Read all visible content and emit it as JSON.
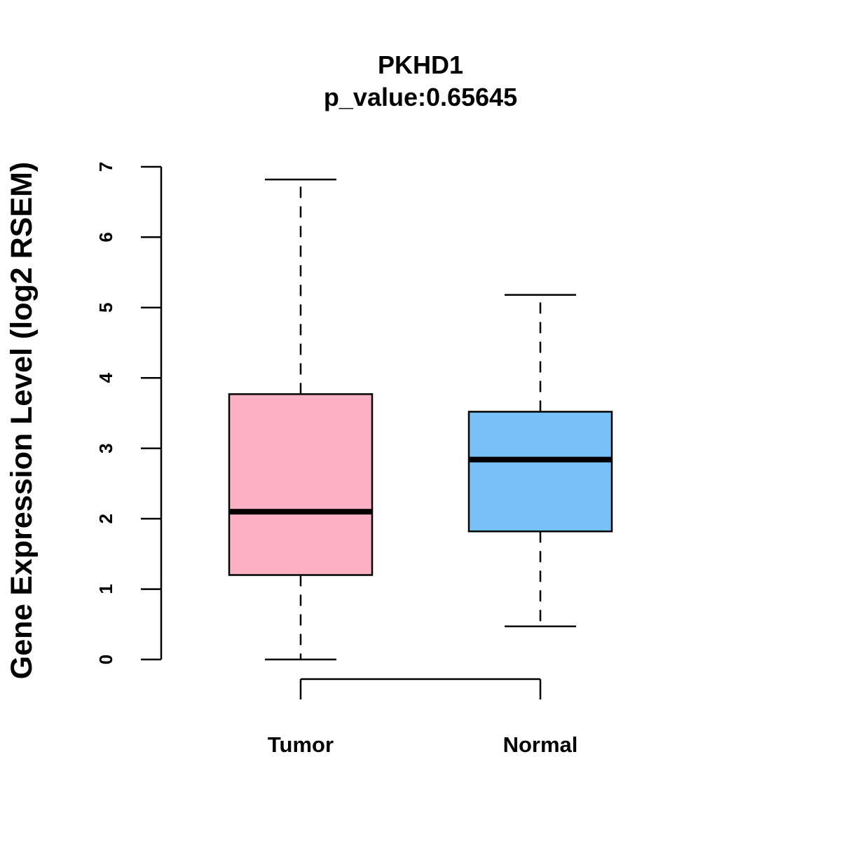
{
  "chart_data": {
    "type": "boxplot",
    "title": "PKHD1",
    "subtitle": "p_value:0.65645",
    "xlabel": "",
    "ylabel": "Gene Expression Level (log2 RSEM)",
    "ylim": [
      0,
      7
    ],
    "yticks": [
      "0",
      "1",
      "2",
      "3",
      "4",
      "5",
      "6",
      "7"
    ],
    "categories": [
      "Tumor",
      "Normal"
    ],
    "boxes": [
      {
        "name": "Tumor",
        "min": 0.0,
        "q1": 1.2,
        "median": 2.1,
        "q3": 3.77,
        "max": 6.82,
        "color": "#FBB1C3"
      },
      {
        "name": "Normal",
        "min": 0.47,
        "q1": 1.82,
        "median": 2.84,
        "q3": 3.52,
        "max": 5.18,
        "color": "#77C1F8"
      }
    ],
    "grid": false,
    "legend": "none"
  }
}
